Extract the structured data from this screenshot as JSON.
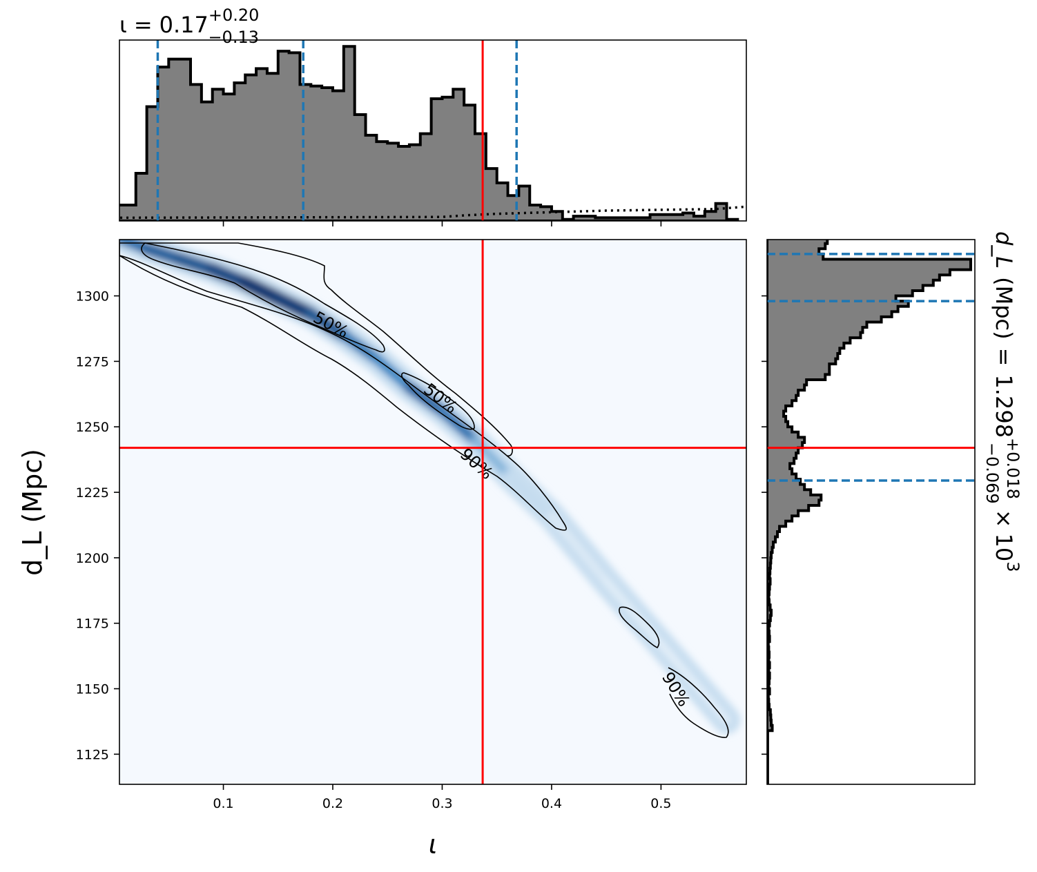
{
  "chart_data": {
    "type": "corner",
    "colors": {
      "truth": "#ff0000",
      "quantile": "#1f77b4",
      "hist_fill": "#808080",
      "hist_edge": "#000000",
      "density_low": "#f5f9fe",
      "density_high": "#08306b"
    },
    "top_panel": {
      "type": "histogram",
      "title": {
        "param": "ι",
        "eq": "=",
        "median": "0.17",
        "upper": "+0.20",
        "lower": "−0.13"
      },
      "xlim": [
        0.005,
        0.578
      ],
      "ylim": [
        0,
        1.14
      ],
      "bin_edges_start": 0.0,
      "bin_width": 0.01,
      "counts": [
        0.1,
        0.1,
        0.3,
        0.72,
        0.97,
        1.02,
        1.02,
        0.86,
        0.75,
        0.83,
        0.8,
        0.87,
        0.92,
        0.96,
        0.93,
        1.07,
        1.06,
        0.86,
        0.85,
        0.84,
        0.82,
        1.1,
        0.67,
        0.54,
        0.5,
        0.49,
        0.47,
        0.48,
        0.55,
        0.77,
        0.78,
        0.83,
        0.73,
        0.55,
        0.33,
        0.24,
        0.16,
        0.22,
        0.1,
        0.09,
        0.06,
        0.01,
        0.03,
        0.03,
        0.02,
        0.02,
        0.02,
        0.02,
        0.02,
        0.04,
        0.04,
        0.04,
        0.05,
        0.03,
        0.06,
        0.11,
        0.01
      ],
      "prior_line": {
        "style": "dotted",
        "x": [
          0.0,
          0.3,
          0.32,
          0.35,
          0.4,
          0.45,
          0.5,
          0.55,
          0.578
        ],
        "y": [
          0.02,
          0.025,
          0.035,
          0.045,
          0.055,
          0.065,
          0.07,
          0.075,
          0.09
        ]
      },
      "quantiles": [
        0.04,
        0.173,
        0.368
      ],
      "truth": 0.337
    },
    "main_panel": {
      "type": "heatmap",
      "xlabel": "ι",
      "ylabel": "d_L (Mpc)",
      "xlim": [
        0.005,
        0.578
      ],
      "ylim": [
        1113.5,
        1321.5
      ],
      "xticks": [
        0.1,
        0.2,
        0.3,
        0.4,
        0.5
      ],
      "xtick_labels": [
        "0.1",
        "0.2",
        "0.3",
        "0.4",
        "0.5"
      ],
      "yticks": [
        1125,
        1150,
        1175,
        1200,
        1225,
        1250,
        1275,
        1300
      ],
      "ytick_labels": [
        "1125",
        "1150",
        "1175",
        "1200",
        "1225",
        "1250",
        "1275",
        "1300"
      ],
      "truth": {
        "x": 0.337,
        "y": 1242.0
      },
      "ridge": {
        "x": [
          0.0,
          0.03,
          0.06,
          0.09,
          0.12,
          0.15,
          0.18,
          0.21,
          0.24,
          0.27,
          0.3,
          0.33,
          0.36,
          0.4,
          0.45,
          0.5,
          0.56
        ],
        "y": [
          1323,
          1318,
          1314,
          1310,
          1305,
          1299,
          1293,
          1285,
          1276,
          1265,
          1256,
          1245,
          1232,
          1216,
          1191,
          1167,
          1138
        ],
        "weight": [
          0.55,
          0.7,
          0.75,
          0.8,
          0.92,
          1.0,
          0.85,
          0.7,
          0.45,
          0.55,
          0.78,
          0.42,
          0.18,
          0.08,
          0.05,
          0.05,
          0.04
        ]
      },
      "contour_labels": [
        "50%",
        "50%",
        "90%",
        "90%"
      ]
    },
    "side_panel": {
      "type": "histogram",
      "orientation": "horizontal",
      "label": {
        "param": "d_L",
        "unit": "(Mpc)",
        "eq": "=",
        "median": "1.298",
        "upper": "+0.018",
        "lower": "−0.069",
        "times": "×",
        "base": "10",
        "exp": "3"
      },
      "ylim": [
        1113.5,
        1321.5
      ],
      "xlim": [
        0,
        1.0
      ],
      "bin_edges_start": 1114.0,
      "bin_width": 2.0,
      "counts": [
        0.003,
        0.003,
        0.003,
        0.003,
        0.003,
        0.003,
        0.003,
        0.003,
        0.003,
        0.003,
        0.025,
        0.02,
        0.018,
        0.016,
        0.01,
        0.008,
        0.006,
        0.012,
        0.008,
        0.01,
        0.012,
        0.008,
        0.012,
        0.008,
        0.01,
        0.008,
        0.006,
        0.012,
        0.01,
        0.008,
        0.012,
        0.016,
        0.02,
        0.015,
        0.01,
        0.008,
        0.01,
        0.012,
        0.015,
        0.012,
        0.014,
        0.016,
        0.018,
        0.02,
        0.025,
        0.03,
        0.04,
        0.05,
        0.06,
        0.09,
        0.12,
        0.15,
        0.2,
        0.25,
        0.26,
        0.21,
        0.18,
        0.16,
        0.14,
        0.12,
        0.11,
        0.13,
        0.14,
        0.15,
        0.17,
        0.18,
        0.15,
        0.12,
        0.1,
        0.09,
        0.08,
        0.09,
        0.12,
        0.14,
        0.15,
        0.18,
        0.19,
        0.28,
        0.3,
        0.3,
        0.33,
        0.34,
        0.35,
        0.37,
        0.4,
        0.45,
        0.46,
        0.48,
        0.55,
        0.6,
        0.63,
        0.68,
        0.62,
        0.7,
        0.75,
        0.8,
        0.83,
        0.88,
        0.98,
        0.98,
        0.27,
        0.25,
        0.28,
        0.29
      ],
      "quantiles": [
        1229.5,
        1298.0,
        1316.0
      ],
      "truth": 1242.0
    }
  }
}
